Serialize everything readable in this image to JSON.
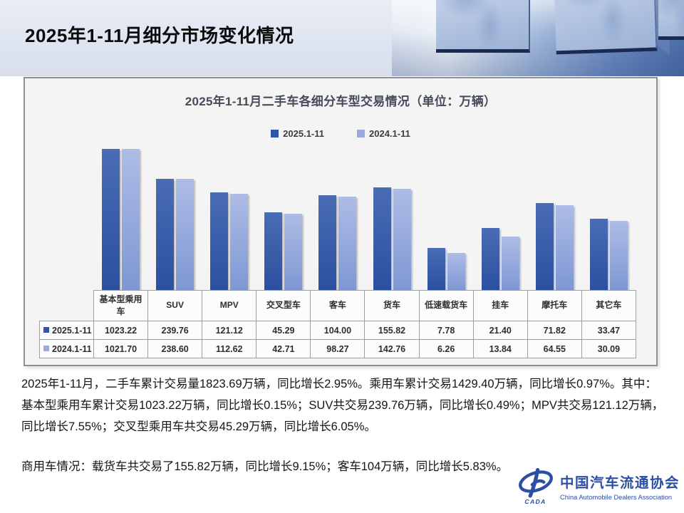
{
  "page": {
    "title": "2025年1-11月细分市场变化情况"
  },
  "chart": {
    "title": "2025年1-11月二手车各细分车型交易情况（单位：万辆）",
    "legend": [
      {
        "label": "2025.1-11",
        "color": "#2e56a6"
      },
      {
        "label": "2024.1-11",
        "color": "#97abdd"
      }
    ]
  },
  "chart_data": {
    "type": "bar",
    "title": "2025年1-11月二手车各细分车型交易情况（单位：万辆）",
    "categories": [
      "基本型乘用车",
      "SUV",
      "MPV",
      "交叉型车",
      "客车",
      "货车",
      "低速载货车",
      "挂车",
      "摩托车",
      "其它车"
    ],
    "series": [
      {
        "name": "2025.1-11",
        "values": [
          1023.22,
          239.76,
          121.12,
          45.29,
          104.0,
          155.82,
          7.78,
          21.4,
          71.82,
          33.47
        ],
        "color_top": "#4a6cb5",
        "color_bottom": "#2b509f"
      },
      {
        "name": "2024.1-11",
        "values": [
          1021.7,
          238.6,
          112.62,
          42.71,
          98.27,
          142.76,
          6.26,
          13.84,
          64.55,
          30.09
        ],
        "color_top": "#aebce6",
        "color_bottom": "#7e97d3"
      }
    ],
    "scale": "log10",
    "value_decimals": 2,
    "legend_position": "top",
    "grid": false,
    "table": true
  },
  "body": {
    "paragraphs": [
      "2025年1-11月，二手车累计交易量1823.69万辆，同比增长2.95%。乘用车累计交易1429.40万辆，同比增长0.97%。其中：基本型乘用车累计交易1023.22万辆，同比增长0.15%；SUV共交易239.76万辆，同比增长0.49%；MPV共交易121.12万辆，同比增长7.55%；交叉型乘用车共交易45.29万辆，同比增长6.05%。",
      "商用车情况：载货车共交易了155.82万辆，同比增长9.15%；客车104万辆，同比增长5.83%。"
    ]
  },
  "logo": {
    "name_cn": "中国汽车流通协会",
    "name_en": "China Automobile Dealers Association",
    "mark_text": "CADA",
    "color": "#2b4fa2"
  }
}
